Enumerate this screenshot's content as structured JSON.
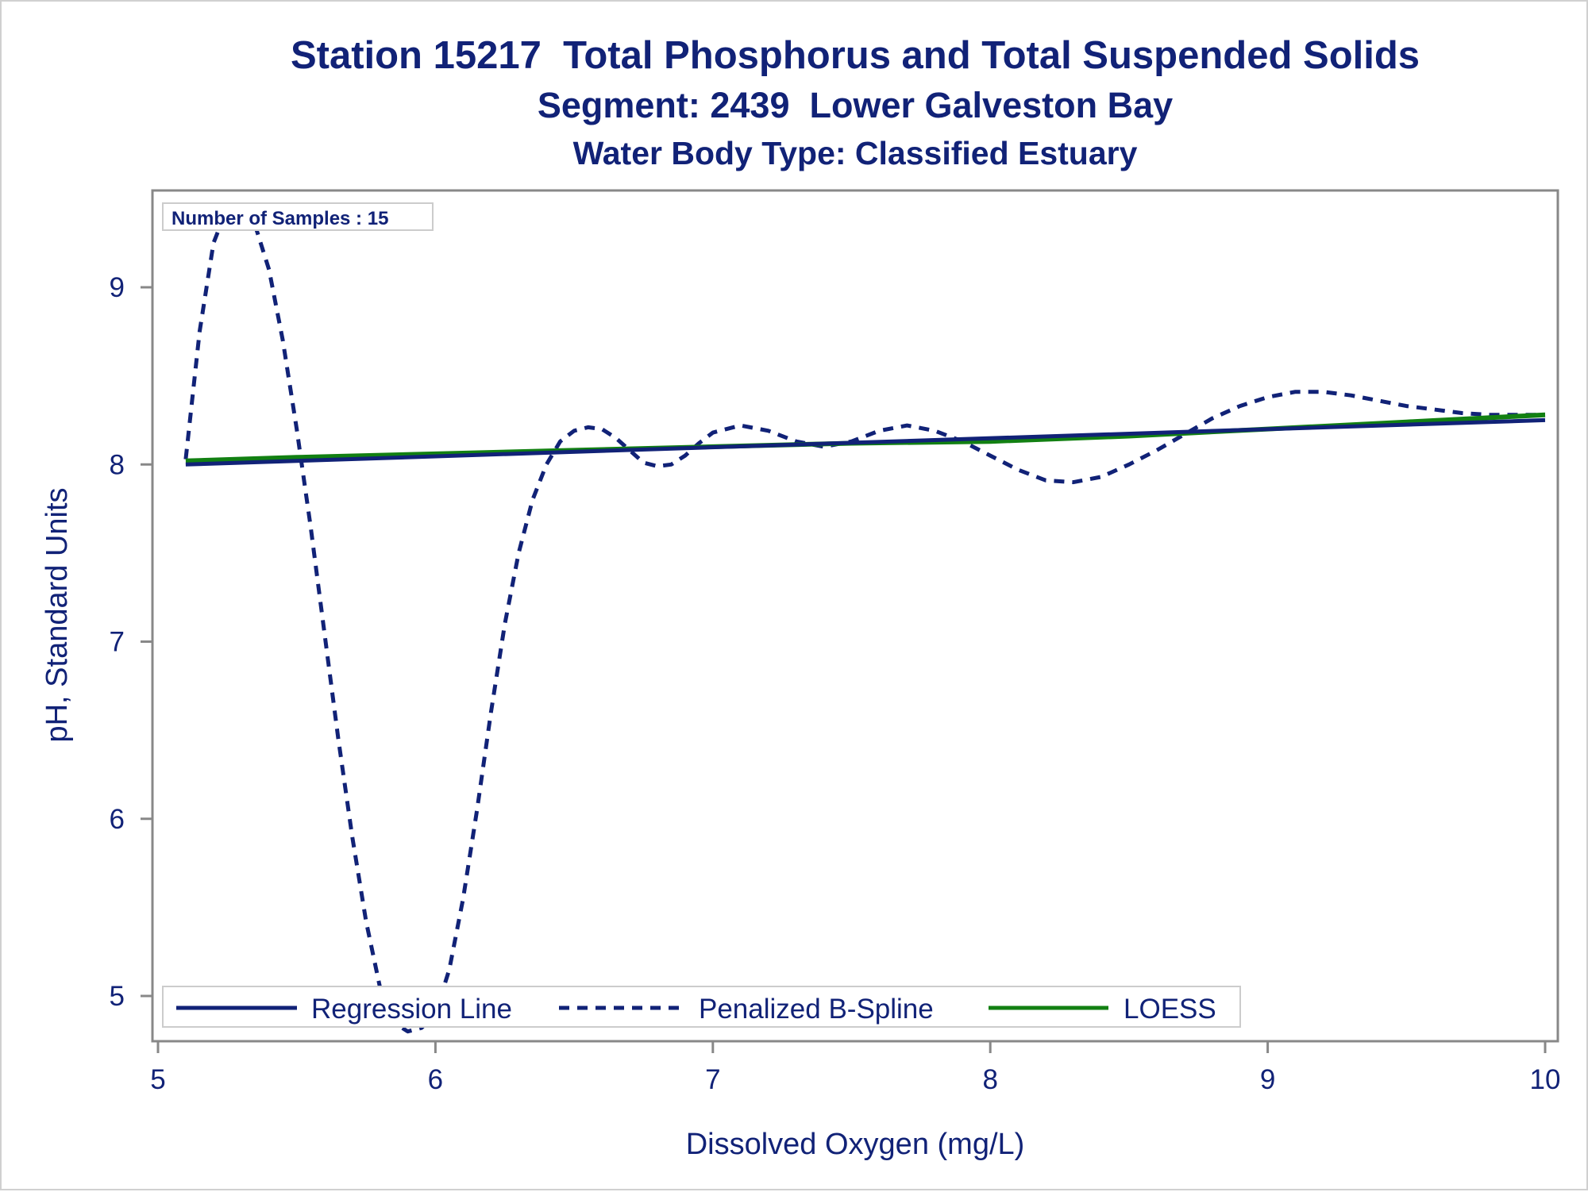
{
  "chart_data": {
    "type": "line",
    "title": "Station 15217  Total Phosphorus and Total Suspended Solids",
    "subtitle": [
      "Segment: 2439  Lower Galveston Bay",
      "Water Body Type: Classified Estuary"
    ],
    "xlabel": "Dissolved Oxygen (mg/L)",
    "ylabel": "pH, Standard Units",
    "xlim": [
      5,
      10
    ],
    "ylim": [
      4.85,
      9.55
    ],
    "xticks": [
      5,
      6,
      7,
      8,
      9,
      10
    ],
    "yticks": [
      5,
      6,
      7,
      8,
      9
    ],
    "grid": false,
    "annotation": "Number of Samples : 15",
    "legend_position": "bottom-left, inside",
    "series": [
      {
        "name": "Regression Line",
        "style": "solid",
        "color": "#112277",
        "x": [
          5.1,
          10.0
        ],
        "y": [
          8.0,
          8.25
        ]
      },
      {
        "name": "Penalized B-Spline",
        "style": "dashed",
        "color": "#112277",
        "x": [
          5.1,
          5.15,
          5.2,
          5.25,
          5.3,
          5.35,
          5.4,
          5.45,
          5.5,
          5.55,
          5.6,
          5.65,
          5.7,
          5.75,
          5.8,
          5.85,
          5.9,
          5.95,
          6.0,
          6.05,
          6.1,
          6.15,
          6.2,
          6.25,
          6.3,
          6.35,
          6.4,
          6.45,
          6.5,
          6.55,
          6.6,
          6.65,
          6.7,
          6.75,
          6.8,
          6.85,
          6.9,
          6.95,
          7.0,
          7.1,
          7.2,
          7.3,
          7.4,
          7.5,
          7.6,
          7.7,
          7.8,
          7.9,
          8.0,
          8.1,
          8.2,
          8.3,
          8.4,
          8.5,
          8.6,
          8.7,
          8.8,
          8.9,
          9.0,
          9.1,
          9.2,
          9.3,
          9.4,
          9.5,
          9.6,
          9.7,
          9.8,
          9.9,
          10.0
        ],
        "y": [
          8.03,
          8.75,
          9.25,
          9.45,
          9.45,
          9.35,
          9.1,
          8.7,
          8.2,
          7.65,
          7.05,
          6.45,
          5.9,
          5.42,
          5.05,
          4.85,
          4.8,
          4.82,
          4.9,
          5.15,
          5.55,
          6.05,
          6.6,
          7.1,
          7.5,
          7.8,
          8.0,
          8.13,
          8.19,
          8.21,
          8.2,
          8.15,
          8.08,
          8.01,
          7.99,
          8.0,
          8.05,
          8.12,
          8.18,
          8.22,
          8.19,
          8.13,
          8.1,
          8.13,
          8.19,
          8.22,
          8.19,
          8.13,
          8.05,
          7.97,
          7.91,
          7.9,
          7.93,
          8.0,
          8.08,
          8.17,
          8.26,
          8.33,
          8.38,
          8.41,
          8.41,
          8.39,
          8.36,
          8.33,
          8.31,
          8.29,
          8.28,
          8.28,
          8.28
        ]
      },
      {
        "name": "LOESS",
        "style": "solid",
        "color": "#128012",
        "x": [
          5.1,
          5.5,
          6.0,
          6.5,
          7.0,
          7.5,
          8.0,
          8.5,
          9.0,
          9.5,
          10.0
        ],
        "y": [
          8.02,
          8.04,
          8.06,
          8.08,
          8.1,
          8.12,
          8.13,
          8.16,
          8.2,
          8.24,
          8.28
        ]
      }
    ]
  }
}
